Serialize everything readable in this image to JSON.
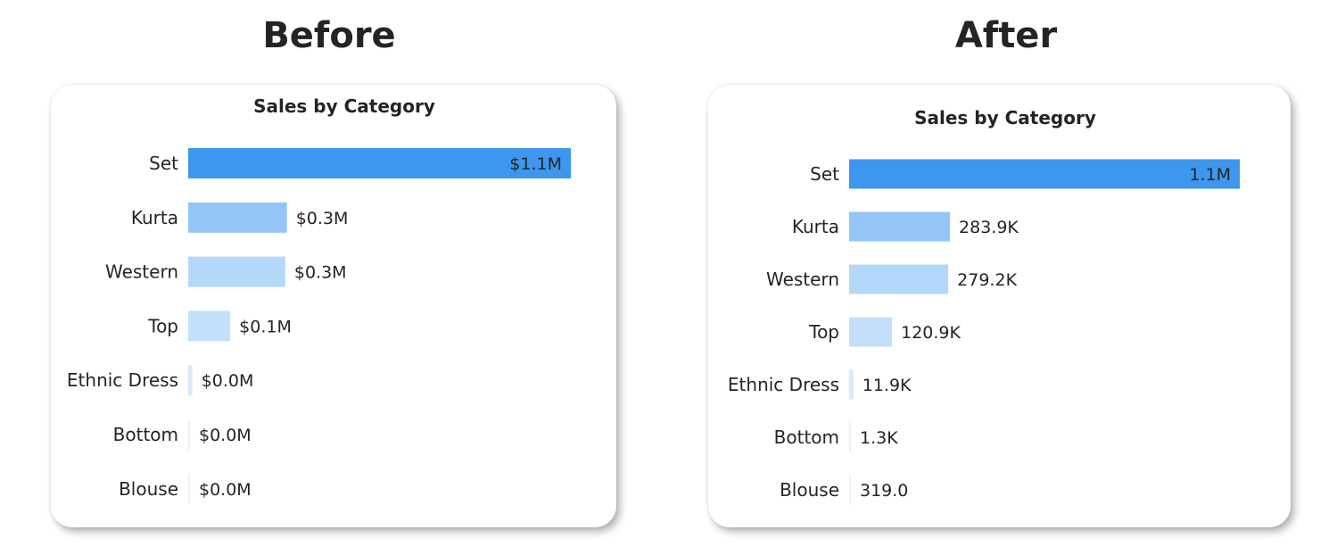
{
  "panels": {
    "before": {
      "heading": "Before"
    },
    "after": {
      "heading": "After"
    }
  },
  "chart_data": [
    {
      "type": "bar",
      "orientation": "horizontal",
      "title": "Sales by Category",
      "categories": [
        "Set",
        "Kurta",
        "Western",
        "Top",
        "Ethnic Dress",
        "Bottom",
        "Blouse"
      ],
      "values": [
        1100000,
        283900,
        279200,
        120900,
        11900,
        1300,
        319
      ],
      "data_labels": [
        "$1.1M",
        "$0.3M",
        "$0.3M",
        "$0.1M",
        "$0.0M",
        "$0.0M",
        "$0.0M"
      ],
      "colors": [
        "#3E97EE",
        "#93C5F6",
        "#B4D8FA",
        "#C3E0FB",
        "#D6EAFC",
        "#E4F1FD",
        "#E9F3FD"
      ],
      "grid": false,
      "legend": "none"
    },
    {
      "type": "bar",
      "orientation": "horizontal",
      "title": "Sales by Category",
      "categories": [
        "Set",
        "Kurta",
        "Western",
        "Top",
        "Ethnic Dress",
        "Bottom",
        "Blouse"
      ],
      "values": [
        1100000,
        283900,
        279200,
        120900,
        11900,
        1300,
        319
      ],
      "data_labels": [
        "1.1M",
        "283.9K",
        "279.2K",
        "120.9K",
        "11.9K",
        "1.3K",
        "319.0"
      ],
      "colors": [
        "#3E97EE",
        "#93C5F6",
        "#B4D8FA",
        "#C3E0FB",
        "#D6EAFC",
        "#E4F1FD",
        "#E9F3FD"
      ],
      "grid": false,
      "legend": "none"
    }
  ]
}
